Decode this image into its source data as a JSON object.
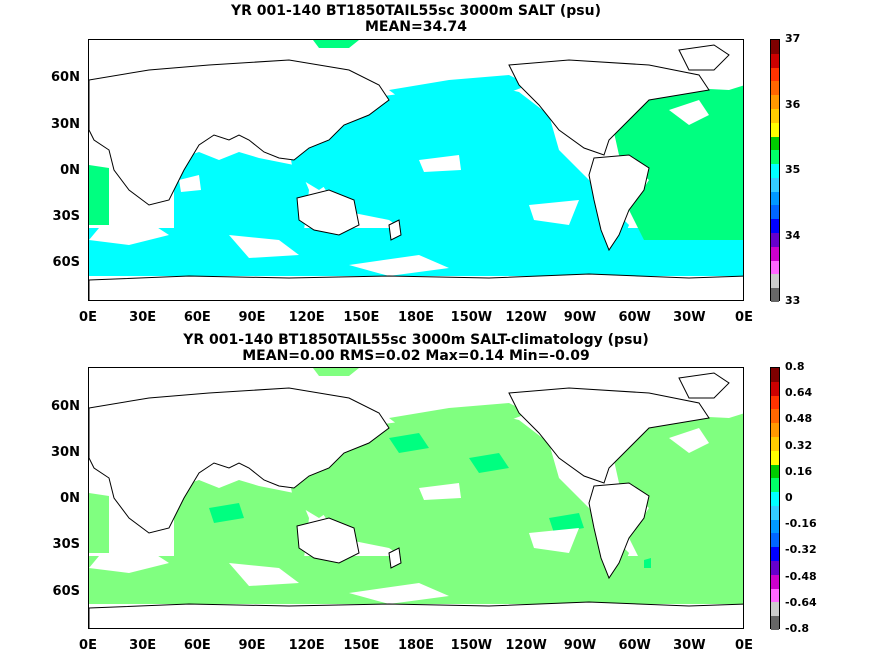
{
  "panels": [
    {
      "title1": "YR 001-140 BT1850TAIL55sc 3000m SALT (psu)",
      "title2": "MEAN=34.74",
      "colorbar": {
        "labels": [
          "37",
          "36",
          "35",
          "34",
          "33"
        ]
      },
      "fill_color": "#00ffff",
      "atlantic_color": "#00ff80"
    },
    {
      "title1": "YR 001-140 BT1850TAIL55sc 3000m SALT-climatology (psu)",
      "title2": "MEAN=0.00   RMS=0.02   Max=0.14   Min=-0.09",
      "colorbar": {
        "labels": [
          "0.8",
          "0.64",
          "0.48",
          "0.32",
          "0.16",
          "0",
          "-0.16",
          "-0.32",
          "-0.48",
          "-0.64",
          "-0.8"
        ]
      },
      "fill_color": "#80ff80",
      "atlantic_color": "#80ff80"
    }
  ],
  "lat_labels": [
    "60N",
    "30N",
    "0N",
    "30S",
    "60S"
  ],
  "lon_labels": [
    "0E",
    "30E",
    "60E",
    "90E",
    "120E",
    "150E",
    "180E",
    "150W",
    "120W",
    "90W",
    "60W",
    "30W",
    "0E"
  ],
  "colorbar_colors": [
    "#7f0000",
    "#cc0000",
    "#ff3300",
    "#ff6600",
    "#ff9900",
    "#ffcc00",
    "#ffff00",
    "#00cc00",
    "#00ff66",
    "#00ffff",
    "#33ccff",
    "#0099ff",
    "#0066ff",
    "#0000ff",
    "#6600cc",
    "#cc00cc",
    "#ff66ff",
    "#cccccc",
    "#666666"
  ]
}
